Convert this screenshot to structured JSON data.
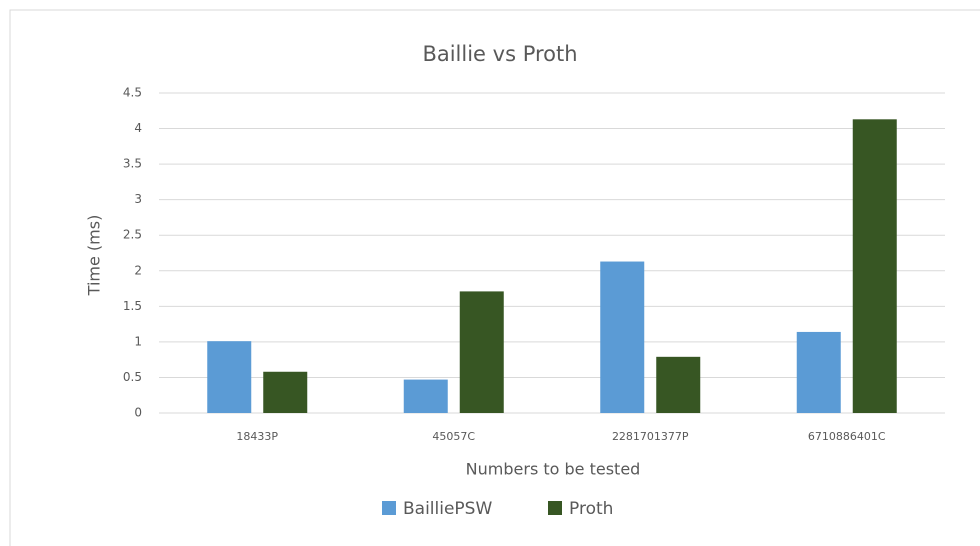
{
  "chart_data": {
    "type": "bar",
    "title": "Baillie vs Proth",
    "x_label": "Numbers to be tested",
    "y_label": "Time (ms)",
    "categories": [
      "18433P",
      "45057C",
      "2281701377P",
      "6710886401C"
    ],
    "series": [
      {
        "name": "BailliePSW",
        "color": "#5b9bd5",
        "values": [
          1.01,
          0.47,
          2.13,
          1.14
        ]
      },
      {
        "name": "Proth",
        "color": "#375623",
        "values": [
          0.58,
          1.71,
          0.79,
          4.13
        ]
      }
    ],
    "ylim": [
      0,
      4.5
    ],
    "yticks": [
      0,
      0.5,
      1,
      1.5,
      2,
      2.5,
      3,
      3.5,
      4,
      4.5
    ],
    "grid": true,
    "legend": "bottom"
  }
}
